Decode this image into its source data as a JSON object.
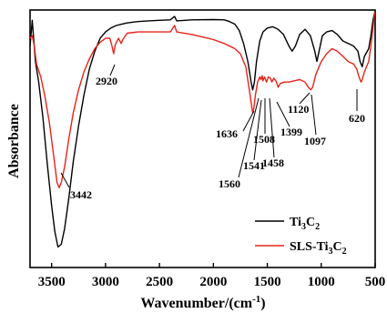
{
  "chart_data": {
    "type": "line",
    "xlabel": "Wavenumber/(cm",
    "xlabel_sup": "-1",
    "xlabel_tail": ")",
    "ylabel": "Absorbance",
    "xlim": [
      3700,
      500
    ],
    "x_reversed": true,
    "xticks": [
      3500,
      3000,
      2500,
      2000,
      1500,
      1000,
      500
    ],
    "ylim": [
      0,
      1
    ],
    "grid": false,
    "legend_position": "bottom-right",
    "series": [
      {
        "name": "Ti3C2",
        "name_parts": {
          "a": "Ti",
          "b": "3",
          "c": "C",
          "d": "2"
        },
        "color": "#000000",
        "points": [
          [
            3700,
            0.86
          ],
          [
            3680,
            0.96
          ],
          [
            3650,
            0.8
          ],
          [
            3620,
            0.72
          ],
          [
            3580,
            0.58
          ],
          [
            3540,
            0.4
          ],
          [
            3500,
            0.24
          ],
          [
            3470,
            0.14
          ],
          [
            3442,
            0.08
          ],
          [
            3410,
            0.09
          ],
          [
            3380,
            0.15
          ],
          [
            3340,
            0.27
          ],
          [
            3300,
            0.41
          ],
          [
            3250,
            0.55
          ],
          [
            3200,
            0.67
          ],
          [
            3150,
            0.77
          ],
          [
            3100,
            0.84
          ],
          [
            3050,
            0.89
          ],
          [
            3000,
            0.915
          ],
          [
            2950,
            0.93
          ],
          [
            2900,
            0.94
          ],
          [
            2850,
            0.945
          ],
          [
            2800,
            0.95
          ],
          [
            2700,
            0.955
          ],
          [
            2600,
            0.958
          ],
          [
            2500,
            0.96
          ],
          [
            2400,
            0.962
          ],
          [
            2360,
            0.975
          ],
          [
            2340,
            0.958
          ],
          [
            2200,
            0.962
          ],
          [
            2000,
            0.963
          ],
          [
            1900,
            0.962
          ],
          [
            1850,
            0.955
          ],
          [
            1800,
            0.945
          ],
          [
            1760,
            0.92
          ],
          [
            1720,
            0.87
          ],
          [
            1680,
            0.8
          ],
          [
            1650,
            0.72
          ],
          [
            1636,
            0.69
          ],
          [
            1620,
            0.72
          ],
          [
            1600,
            0.8
          ],
          [
            1570,
            0.88
          ],
          [
            1540,
            0.915
          ],
          [
            1500,
            0.93
          ],
          [
            1450,
            0.935
          ],
          [
            1400,
            0.925
          ],
          [
            1350,
            0.905
          ],
          [
            1300,
            0.86
          ],
          [
            1270,
            0.84
          ],
          [
            1240,
            0.86
          ],
          [
            1200,
            0.905
          ],
          [
            1150,
            0.925
          ],
          [
            1100,
            0.9
          ],
          [
            1060,
            0.84
          ],
          [
            1040,
            0.8
          ],
          [
            1020,
            0.84
          ],
          [
            990,
            0.9
          ],
          [
            950,
            0.915
          ],
          [
            900,
            0.92
          ],
          [
            850,
            0.905
          ],
          [
            800,
            0.88
          ],
          [
            750,
            0.87
          ],
          [
            700,
            0.86
          ],
          [
            660,
            0.84
          ],
          [
            640,
            0.8
          ],
          [
            620,
            0.78
          ],
          [
            600,
            0.82
          ],
          [
            560,
            0.85
          ],
          [
            540,
            0.9
          ],
          [
            520,
            0.96
          ],
          [
            505,
            0.99
          ]
        ]
      },
      {
        "name": "SLS-Ti3C2",
        "name_parts": {
          "a": "SLS-Ti",
          "b": "3",
          "c": "C",
          "d": "2"
        },
        "color": "#e8231a",
        "points": [
          [
            3700,
            0.89
          ],
          [
            3680,
            0.9
          ],
          [
            3660,
            0.86
          ],
          [
            3640,
            0.79
          ],
          [
            3600,
            0.74
          ],
          [
            3560,
            0.66
          ],
          [
            3520,
            0.56
          ],
          [
            3480,
            0.43
          ],
          [
            3450,
            0.33
          ],
          [
            3430,
            0.31
          ],
          [
            3410,
            0.33
          ],
          [
            3380,
            0.39
          ],
          [
            3340,
            0.5
          ],
          [
            3300,
            0.6
          ],
          [
            3250,
            0.69
          ],
          [
            3200,
            0.76
          ],
          [
            3150,
            0.81
          ],
          [
            3100,
            0.85
          ],
          [
            3050,
            0.875
          ],
          [
            3000,
            0.89
          ],
          [
            2960,
            0.89
          ],
          [
            2940,
            0.86
          ],
          [
            2925,
            0.83
          ],
          [
            2910,
            0.865
          ],
          [
            2880,
            0.89
          ],
          [
            2855,
            0.87
          ],
          [
            2840,
            0.885
          ],
          [
            2800,
            0.91
          ],
          [
            2700,
            0.915
          ],
          [
            2600,
            0.915
          ],
          [
            2500,
            0.915
          ],
          [
            2400,
            0.915
          ],
          [
            2360,
            0.94
          ],
          [
            2340,
            0.915
          ],
          [
            2300,
            0.912
          ],
          [
            2200,
            0.905
          ],
          [
            2100,
            0.895
          ],
          [
            2000,
            0.885
          ],
          [
            1900,
            0.87
          ],
          [
            1800,
            0.85
          ],
          [
            1750,
            0.83
          ],
          [
            1700,
            0.78
          ],
          [
            1670,
            0.7
          ],
          [
            1650,
            0.64
          ],
          [
            1636,
            0.6
          ],
          [
            1625,
            0.62
          ],
          [
            1610,
            0.67
          ],
          [
            1590,
            0.72
          ],
          [
            1570,
            0.74
          ],
          [
            1560,
            0.73
          ],
          [
            1548,
            0.745
          ],
          [
            1541,
            0.725
          ],
          [
            1525,
            0.74
          ],
          [
            1508,
            0.72
          ],
          [
            1490,
            0.74
          ],
          [
            1470,
            0.735
          ],
          [
            1458,
            0.72
          ],
          [
            1440,
            0.735
          ],
          [
            1420,
            0.725
          ],
          [
            1399,
            0.7
          ],
          [
            1380,
            0.715
          ],
          [
            1340,
            0.72
          ],
          [
            1300,
            0.72
          ],
          [
            1250,
            0.725
          ],
          [
            1200,
            0.73
          ],
          [
            1150,
            0.72
          ],
          [
            1120,
            0.7
          ],
          [
            1097,
            0.69
          ],
          [
            1080,
            0.7
          ],
          [
            1050,
            0.75
          ],
          [
            1000,
            0.8
          ],
          [
            950,
            0.83
          ],
          [
            900,
            0.85
          ],
          [
            850,
            0.84
          ],
          [
            800,
            0.82
          ],
          [
            750,
            0.8
          ],
          [
            700,
            0.79
          ],
          [
            670,
            0.77
          ],
          [
            650,
            0.74
          ],
          [
            630,
            0.72
          ],
          [
            620,
            0.73
          ],
          [
            600,
            0.76
          ],
          [
            560,
            0.8
          ],
          [
            540,
            0.86
          ],
          [
            520,
            0.93
          ],
          [
            505,
            0.99
          ]
        ]
      }
    ],
    "annotations": [
      {
        "label": "2920",
        "x": 2920
      },
      {
        "label": "3442",
        "x": 3442
      },
      {
        "label": "1636",
        "x": 1636
      },
      {
        "label": "1560",
        "x": 1560
      },
      {
        "label": "1541",
        "x": 1541
      },
      {
        "label": "1508",
        "x": 1508
      },
      {
        "label": "1458",
        "x": 1458
      },
      {
        "label": "1399",
        "x": 1399
      },
      {
        "label": "1120",
        "x": 1120
      },
      {
        "label": "1097",
        "x": 1097
      },
      {
        "label": "620",
        "x": 620
      }
    ]
  }
}
